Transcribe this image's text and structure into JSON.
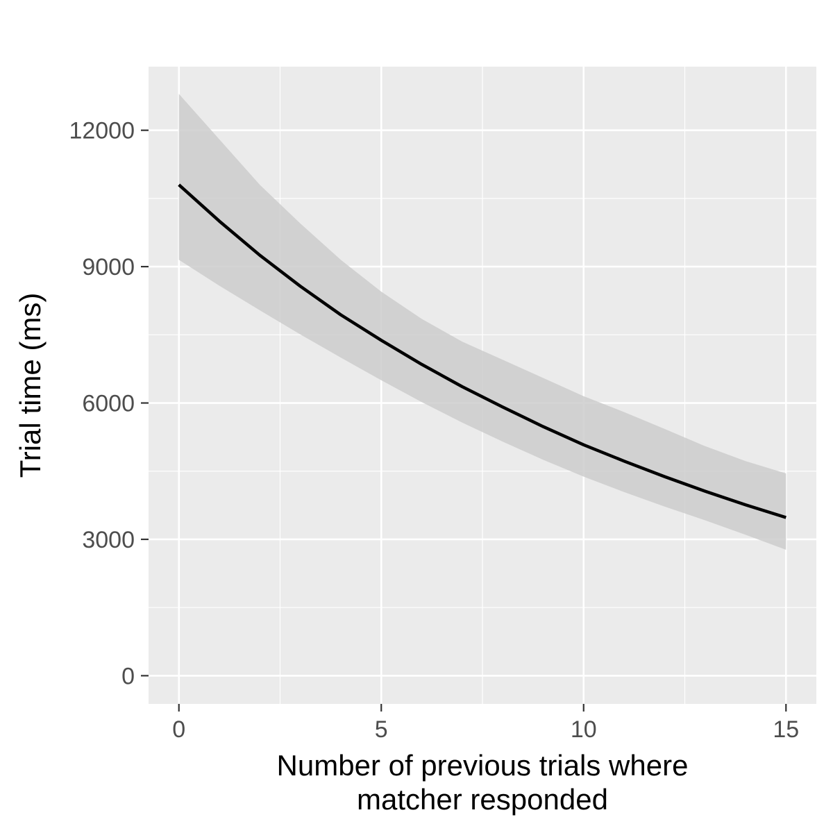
{
  "chart_data": {
    "type": "line",
    "title": "",
    "xlabel_lines": [
      "Number of previous trials where",
      "matcher responded"
    ],
    "ylabel": "Trial time (ms)",
    "xlim": [
      -0.75,
      15.75
    ],
    "ylim": [
      -620,
      13400
    ],
    "x_ticks": [
      0,
      5,
      10,
      15
    ],
    "x_tick_labels": [
      "0",
      "5",
      "10",
      "15"
    ],
    "y_ticks": [
      0,
      3000,
      6000,
      9000,
      12000
    ],
    "y_tick_labels": [
      "0",
      "3000",
      "6000",
      "9000",
      "12000"
    ],
    "x_minor_breaks": [
      2.5,
      7.5,
      12.5
    ],
    "y_minor_breaks": [
      1500,
      4500,
      7500,
      10500
    ],
    "grid": true,
    "legend": "none",
    "colors": {
      "panel_background": "#ebebeb",
      "grid": "#ffffff",
      "ribbon": "#cccccc",
      "line": "#000000"
    },
    "series": [
      {
        "x": [
          0,
          1,
          2,
          3,
          4,
          5,
          6,
          7,
          8,
          9,
          10,
          11,
          12,
          13,
          14,
          15
        ],
        "y": [
          10800,
          10000,
          9250,
          8570,
          7940,
          7380,
          6850,
          6360,
          5910,
          5480,
          5080,
          4720,
          4380,
          4060,
          3760,
          3480
        ],
        "lower": [
          9150,
          8580,
          8040,
          7510,
          7000,
          6500,
          6020,
          5570,
          5150,
          4750,
          4380,
          4040,
          3720,
          3420,
          3100,
          2770
        ],
        "upper": [
          12800,
          11800,
          10800,
          9950,
          9150,
          8450,
          7850,
          7350,
          6950,
          6550,
          6150,
          5800,
          5430,
          5050,
          4720,
          4450
        ]
      }
    ]
  }
}
